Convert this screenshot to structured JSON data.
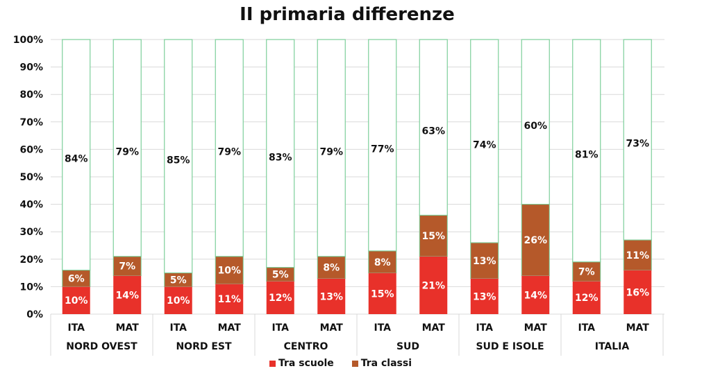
{
  "chart_data": {
    "type": "bar",
    "title": "II primaria differenze",
    "xlabel": "",
    "ylabel": "",
    "ylim": [
      0,
      100
    ],
    "yticks": [
      "0%",
      "10%",
      "20%",
      "30%",
      "40%",
      "50%",
      "60%",
      "70%",
      "80%",
      "90%",
      "100%"
    ],
    "groups": [
      "NORD OVEST",
      "NORD EST",
      "CENTRO",
      "SUD",
      "SUD E ISOLE",
      "ITALIA"
    ],
    "categories": [
      "ITA",
      "MAT",
      "ITA",
      "MAT",
      "ITA",
      "MAT",
      "ITA",
      "MAT",
      "ITA",
      "MAT",
      "ITA",
      "MAT"
    ],
    "series": [
      {
        "name": "Tra scuole",
        "values": [
          10,
          14,
          10,
          11,
          12,
          13,
          15,
          21,
          13,
          14,
          12,
          16
        ],
        "labels": [
          "10%",
          "14%",
          "10%",
          "11%",
          "12%",
          "13%",
          "15%",
          "21%",
          "13%",
          "14%",
          "12%",
          "16%"
        ]
      },
      {
        "name": "Tra classi",
        "values": [
          6,
          7,
          5,
          10,
          5,
          8,
          8,
          15,
          13,
          26,
          7,
          11
        ],
        "labels": [
          "6%",
          "7%",
          "5%",
          "10%",
          "5%",
          "8%",
          "8%",
          "15%",
          "13%",
          "26%",
          "7%",
          "11%"
        ]
      },
      {
        "values": [
          84,
          79,
          85,
          79,
          83,
          79,
          77,
          63,
          74,
          60,
          81,
          73
        ],
        "labels": [
          "84%",
          "79%",
          "85%",
          "79%",
          "83%",
          "79%",
          "77%",
          "63%",
          "74%",
          "60%",
          "81%",
          "73%"
        ]
      }
    ],
    "colors": {
      "tra_scuole": "#e8312a",
      "tra_classi": "#b5592a",
      "rest_fill": "#ffffff",
      "rest_border": "#7dcf9a",
      "grid": "#d9d9d9"
    },
    "grid": true,
    "legend_position": "bottom"
  }
}
